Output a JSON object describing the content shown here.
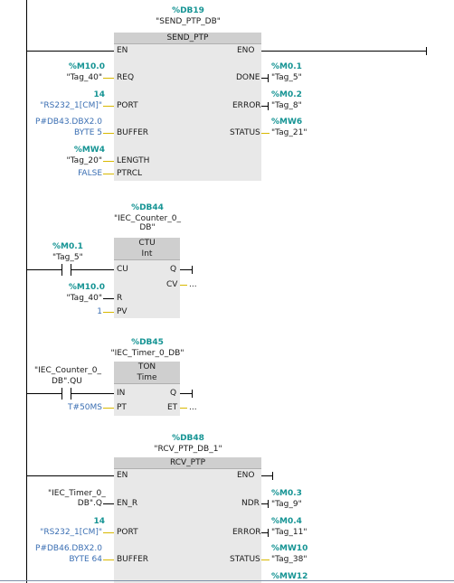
{
  "send": {
    "db": "%DB19",
    "dbname": "\"SEND_PTP_DB\"",
    "title": "SEND_PTP",
    "en": "EN",
    "eno": "ENO",
    "in_pins": [
      "REQ",
      "PORT",
      "BUFFER",
      "LENGTH",
      "PTRCL"
    ],
    "out_pins": [
      "DONE",
      "ERROR",
      "STATUS"
    ],
    "req_addr": "%M10.0",
    "req_tag": "\"Tag_40\"",
    "port_val": "14",
    "port_tag": "\"RS232_1[CM]\"",
    "buffer_1": "P#DB43.DBX2.0",
    "buffer_2": "BYTE 5",
    "length_addr": "%MW4",
    "length_tag": "\"Tag_20\"",
    "ptrcl_val": "FALSE",
    "done_addr": "%M0.1",
    "done_tag": "\"Tag_5\"",
    "error_addr": "%M0.2",
    "error_tag": "\"Tag_8\"",
    "status_addr": "%MW6",
    "status_tag": "\"Tag_21\""
  },
  "ctu": {
    "db": "%DB44",
    "dbname_1": "\"IEC_Counter_0_",
    "dbname_2": "DB\"",
    "title": "CTU",
    "subtitle": "Int",
    "contact_addr": "%M0.1",
    "contact_tag": "\"Tag_5\"",
    "in_pins": [
      "CU",
      "R",
      "PV"
    ],
    "out_pins": [
      "Q",
      "CV"
    ],
    "r_addr": "%M10.0",
    "r_tag": "\"Tag_40\"",
    "pv_val": "1",
    "cv_val": "..."
  },
  "ton": {
    "db": "%DB45",
    "dbname": "\"IEC_Timer_0_DB\"",
    "title": "TON",
    "subtitle": "Time",
    "contact_1": "\"IEC_Counter_0_",
    "contact_2": "DB\".QU",
    "in_pins": [
      "IN",
      "PT"
    ],
    "out_pins": [
      "Q",
      "ET"
    ],
    "pt_val": "T#50MS",
    "et_val": "..."
  },
  "rcv": {
    "db": "%DB48",
    "dbname": "\"RCV_PTP_DB_1\"",
    "title": "RCV_PTP",
    "en": "EN",
    "eno": "ENO",
    "in_pins": [
      "EN_R",
      "PORT",
      "BUFFER"
    ],
    "out_pins": [
      "NDR",
      "ERROR",
      "STATUS"
    ],
    "enr_1": "\"IEC_Timer_0_",
    "enr_2": "DB\".Q",
    "port_val": "14",
    "port_tag": "\"RS232_1[CM]\"",
    "buffer_1": "P#DB46.DBX2.0",
    "buffer_2": "BYTE 64",
    "ndr_addr": "%M0.3",
    "ndr_tag": "\"Tag_9\"",
    "error_addr": "%M0.4",
    "error_tag": "\"Tag_11\"",
    "status_addr": "%MW10",
    "status_tag": "\"Tag_38\"",
    "next_addr": "%MW12"
  }
}
